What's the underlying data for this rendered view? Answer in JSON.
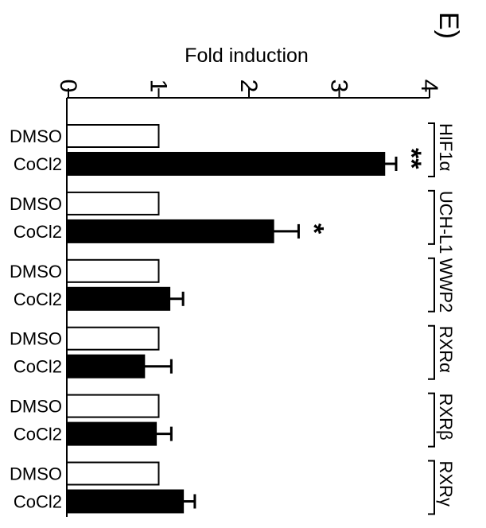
{
  "panel_label": "E)",
  "chart_data": {
    "type": "bar",
    "orientation": "horizontal",
    "title": "",
    "xlabel": "Fold induction",
    "xlim": [
      0,
      4
    ],
    "xticks": [
      "0",
      "1",
      "2",
      "3",
      "4"
    ],
    "tick_rotation": "rotated 90 degrees clockwise",
    "error_bars": true,
    "legend": "none",
    "colors": {
      "DMSO": "#ffffff",
      "CoCl2": "#000000",
      "outline": "#000000"
    },
    "groups": [
      {
        "name": "HIF1α",
        "bars": [
          {
            "label": "DMSO",
            "value": 1.0,
            "error": 0
          },
          {
            "label": "CoCl2",
            "value": 3.5,
            "error": 0.13,
            "annotation": "**"
          }
        ]
      },
      {
        "name": "UCH-L1",
        "bars": [
          {
            "label": "DMSO",
            "value": 1.0,
            "error": 0
          },
          {
            "label": "CoCl2",
            "value": 2.27,
            "error": 0.28,
            "annotation": "*"
          }
        ]
      },
      {
        "name": "WWP2",
        "bars": [
          {
            "label": "DMSO",
            "value": 1.0,
            "error": 0
          },
          {
            "label": "CoCl2",
            "value": 1.12,
            "error": 0.15
          }
        ]
      },
      {
        "name": "RXRα",
        "bars": [
          {
            "label": "DMSO",
            "value": 1.0,
            "error": 0
          },
          {
            "label": "CoCl2",
            "value": 0.84,
            "error": 0.3
          }
        ]
      },
      {
        "name": "RXRβ",
        "bars": [
          {
            "label": "DMSO",
            "value": 1.0,
            "error": 0
          },
          {
            "label": "CoCl2",
            "value": 0.97,
            "error": 0.17
          }
        ]
      },
      {
        "name": "RXRγ",
        "bars": [
          {
            "label": "DMSO",
            "value": 1.0,
            "error": 0
          },
          {
            "label": "CoCl2",
            "value": 1.27,
            "error": 0.13
          }
        ]
      }
    ]
  }
}
